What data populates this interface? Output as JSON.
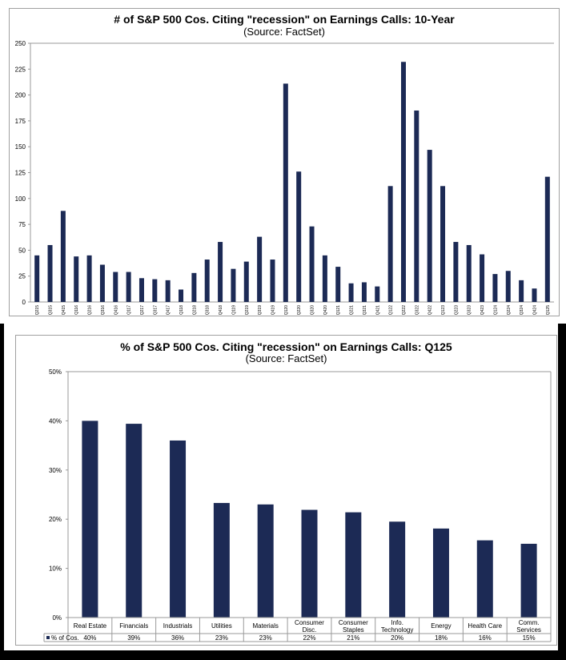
{
  "chart_data": [
    {
      "type": "bar",
      "title": "# of S&P 500 Cos. Citing \"recession\" on Earnings Calls: 10-Year",
      "subtitle": "(Source: FactSet)",
      "categories": [
        "Q215",
        "Q315",
        "Q415",
        "Q116",
        "Q216",
        "Q316",
        "Q416",
        "Q117",
        "Q217",
        "Q317",
        "Q417",
        "Q118",
        "Q218",
        "Q318",
        "Q418",
        "Q119",
        "Q219",
        "Q319",
        "Q419",
        "Q120",
        "Q220",
        "Q320",
        "Q420",
        "Q121",
        "Q221",
        "Q321",
        "Q421",
        "Q122",
        "Q222",
        "Q322",
        "Q422",
        "Q123",
        "Q223",
        "Q323",
        "Q423",
        "Q124",
        "Q224",
        "Q324",
        "Q424",
        "Q125"
      ],
      "values": [
        45,
        55,
        88,
        44,
        45,
        36,
        29,
        29,
        23,
        22,
        21,
        12,
        28,
        41,
        58,
        32,
        39,
        63,
        41,
        211,
        126,
        73,
        45,
        34,
        18,
        19,
        15,
        112,
        232,
        185,
        147,
        112,
        58,
        55,
        46,
        27,
        30,
        21,
        13,
        121
      ],
      "yticks": [
        0,
        25,
        50,
        75,
        100,
        125,
        150,
        175,
        200,
        225,
        250
      ],
      "ylim": [
        0,
        250
      ],
      "color": "#1c2a55"
    },
    {
      "type": "bar",
      "title": "% of S&P 500 Cos. Citing \"recession\" on Earnings Calls: Q125",
      "subtitle": "(Source: FactSet)",
      "categories": [
        [
          "Real Estate"
        ],
        [
          "Financials"
        ],
        [
          "Industrials"
        ],
        [
          "Utilities"
        ],
        [
          "Materials"
        ],
        [
          "Consumer",
          "Disc."
        ],
        [
          "Consumer",
          "Staples"
        ],
        [
          "Info.",
          "Technology"
        ],
        [
          "Energy"
        ],
        [
          "Health Care"
        ],
        [
          "Comm.",
          "Services"
        ]
      ],
      "values": [
        40,
        39.4,
        36,
        23.3,
        23,
        21.9,
        21.4,
        19.5,
        18.1,
        15.7,
        15
      ],
      "value_labels": [
        "40%",
        "39%",
        "36%",
        "23%",
        "23%",
        "22%",
        "21%",
        "20%",
        "18%",
        "16%",
        "15%"
      ],
      "series_name": "% of Cos.",
      "yticks": [
        "0%",
        "10%",
        "20%",
        "30%",
        "40%",
        "50%"
      ],
      "ylim": [
        0,
        50
      ],
      "color": "#1c2a55"
    }
  ]
}
